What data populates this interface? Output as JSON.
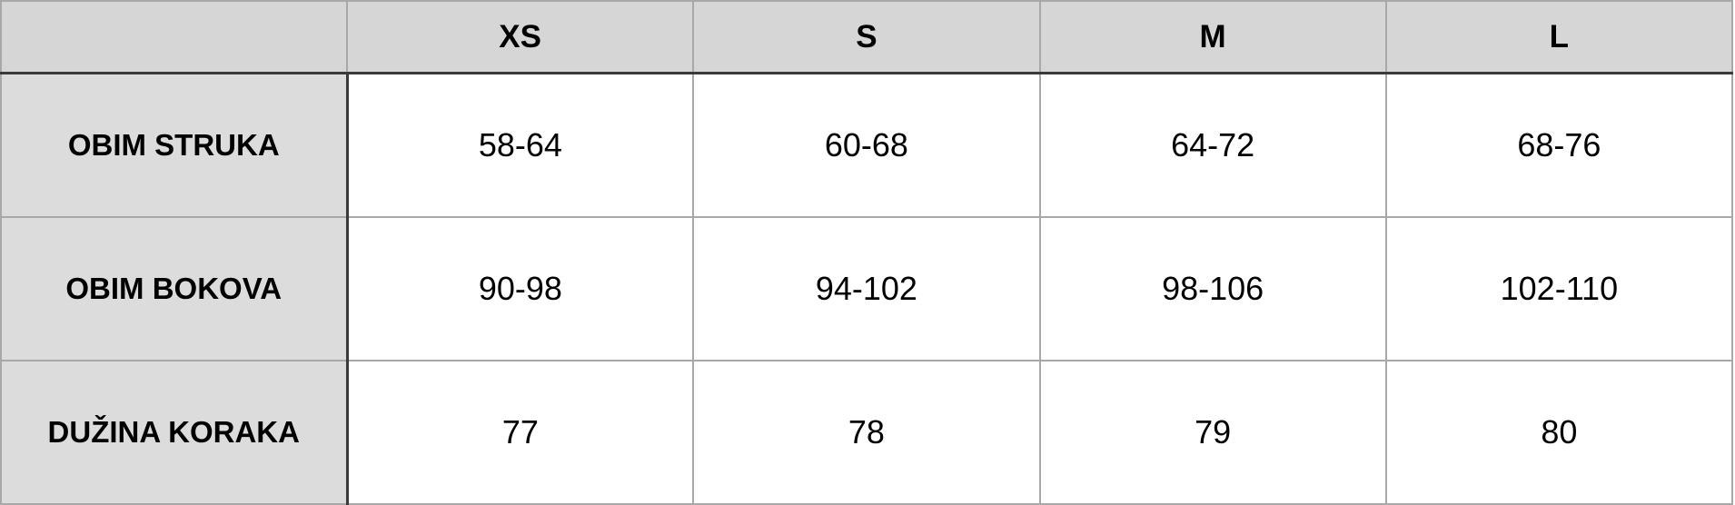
{
  "table": {
    "corner": "",
    "columns": [
      "XS",
      "S",
      "M",
      "L"
    ],
    "rows": [
      {
        "label": "OBIM STRUKA",
        "values": [
          "58-64",
          "60-68",
          "64-72",
          "68-76"
        ]
      },
      {
        "label": "OBIM BOKOVA",
        "values": [
          "90-98",
          "94-102",
          "98-106",
          "102-110"
        ]
      },
      {
        "label": "DUŽINA KORAKA",
        "values": [
          "77",
          "78",
          "79",
          "80"
        ]
      }
    ]
  },
  "colors": {
    "header_bg": "#d6d6d6",
    "row_header_bg": "#dcdcdc",
    "grid": "#a8a8a8"
  }
}
